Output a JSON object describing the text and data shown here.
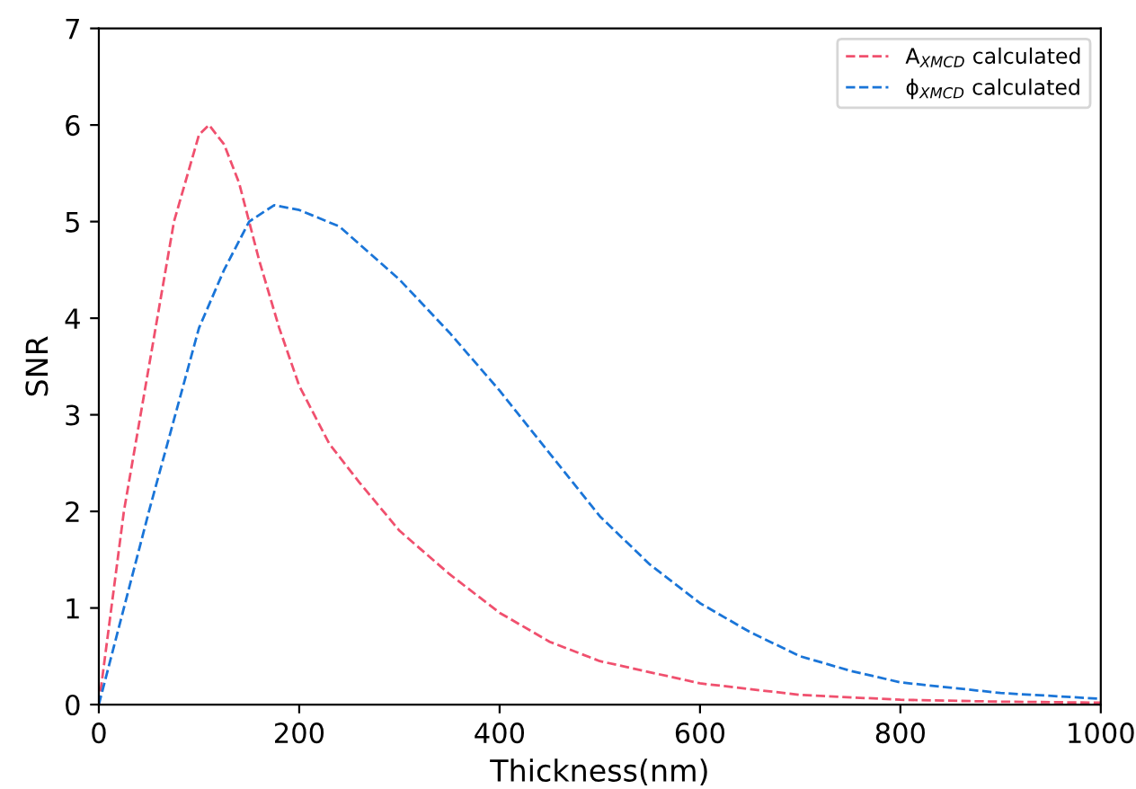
{
  "chart_data": {
    "type": "line",
    "xlabel": "Thickness(nm)",
    "ylabel": "SNR",
    "xlim": [
      0,
      1000
    ],
    "ylim": [
      0,
      7
    ],
    "xticks": [
      0,
      200,
      400,
      600,
      800,
      1000
    ],
    "yticks": [
      0,
      1,
      2,
      3,
      4,
      5,
      6,
      7
    ],
    "grid": false,
    "legend": "top right",
    "line_style": "dashed",
    "marker": "none",
    "series": [
      {
        "name": "A$_{XMCD}$ calculated",
        "color": "#f0506e",
        "x": [
          0,
          25,
          50,
          75,
          100,
          110,
          125,
          140,
          160,
          180,
          200,
          230,
          260,
          300,
          350,
          400,
          450,
          500,
          600,
          700,
          800,
          900,
          1000
        ],
        "values": [
          0,
          2.0,
          3.5,
          5.0,
          5.9,
          6.0,
          5.8,
          5.4,
          4.6,
          3.9,
          3.3,
          2.7,
          2.3,
          1.8,
          1.35,
          0.95,
          0.65,
          0.45,
          0.22,
          0.1,
          0.05,
          0.03,
          0.02
        ]
      },
      {
        "name": "ϕ$_{XMCD}$ calculated",
        "color": "#1a75d8",
        "x": [
          0,
          50,
          100,
          125,
          150,
          175,
          200,
          240,
          300,
          350,
          400,
          450,
          500,
          550,
          600,
          650,
          700,
          750,
          800,
          900,
          1000
        ],
        "values": [
          0,
          2.0,
          3.9,
          4.5,
          5.0,
          5.17,
          5.12,
          4.95,
          4.4,
          3.85,
          3.25,
          2.6,
          1.95,
          1.45,
          1.05,
          0.75,
          0.5,
          0.35,
          0.23,
          0.12,
          0.06
        ]
      }
    ]
  }
}
